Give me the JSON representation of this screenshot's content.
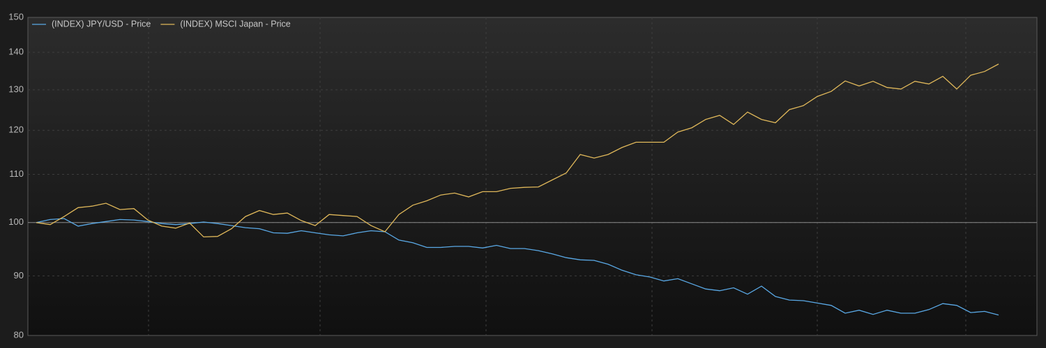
{
  "chart_data": {
    "type": "line",
    "log_scale": true,
    "grid": true,
    "legend": "top-left",
    "baseline": 100,
    "ylim": [
      80,
      150
    ],
    "yticks": [
      80,
      90,
      100,
      110,
      120,
      130,
      140,
      150
    ],
    "series": [
      {
        "name": "(INDEX) JPY/USD - Price",
        "color": "#5aa9e6",
        "values": [
          100,
          100.6,
          100.8,
          99.3,
          99.8,
          100.2,
          100.6,
          100.5,
          100.2,
          99.8,
          99.6,
          99.8,
          100.1,
          99.8,
          99.4,
          99,
          98.8,
          98,
          97.9,
          98.4,
          98,
          97.6,
          97.4,
          98,
          98.4,
          98.2,
          96.6,
          96.1,
          95.2,
          95.2,
          95.4,
          95.4,
          95.1,
          95.6,
          95,
          95,
          94.6,
          94,
          93.3,
          92.9,
          92.8,
          92.1,
          91,
          90.2,
          89.8,
          89.1,
          89.5,
          88.6,
          87.7,
          87.4,
          87.9,
          86.8,
          88.2,
          86.4,
          85.8,
          85.7,
          85.3,
          84.9,
          83.6,
          84.1,
          83.4,
          84.1,
          83.6,
          83.6,
          84.2,
          85.2,
          84.9,
          83.7,
          83.9,
          83.3
        ]
      },
      {
        "name": "(INDEX) MSCI Japan - Price",
        "color": "#e0b85a",
        "values": [
          100,
          99.6,
          101.2,
          103,
          103.3,
          103.9,
          102.6,
          102.8,
          100.5,
          99.3,
          98.9,
          99.9,
          97.2,
          97.3,
          98.8,
          101.2,
          102.4,
          101.6,
          101.9,
          100.4,
          99.4,
          101.6,
          101.4,
          101.2,
          99.4,
          98.2,
          101.6,
          103.5,
          104.4,
          105.6,
          106,
          105.2,
          106.3,
          106.3,
          107,
          107.2,
          107.3,
          108.8,
          110.3,
          114.4,
          113.6,
          114.4,
          116,
          117.2,
          117.2,
          117.2,
          119.6,
          120.6,
          122.6,
          123.6,
          121.4,
          124.4,
          122.6,
          121.8,
          125,
          126,
          128.3,
          129.6,
          132.3,
          131,
          132.2,
          130.6,
          130.2,
          132.2,
          131.5,
          133.5,
          130.2,
          133.8,
          134.8,
          136.8
        ]
      }
    ]
  }
}
